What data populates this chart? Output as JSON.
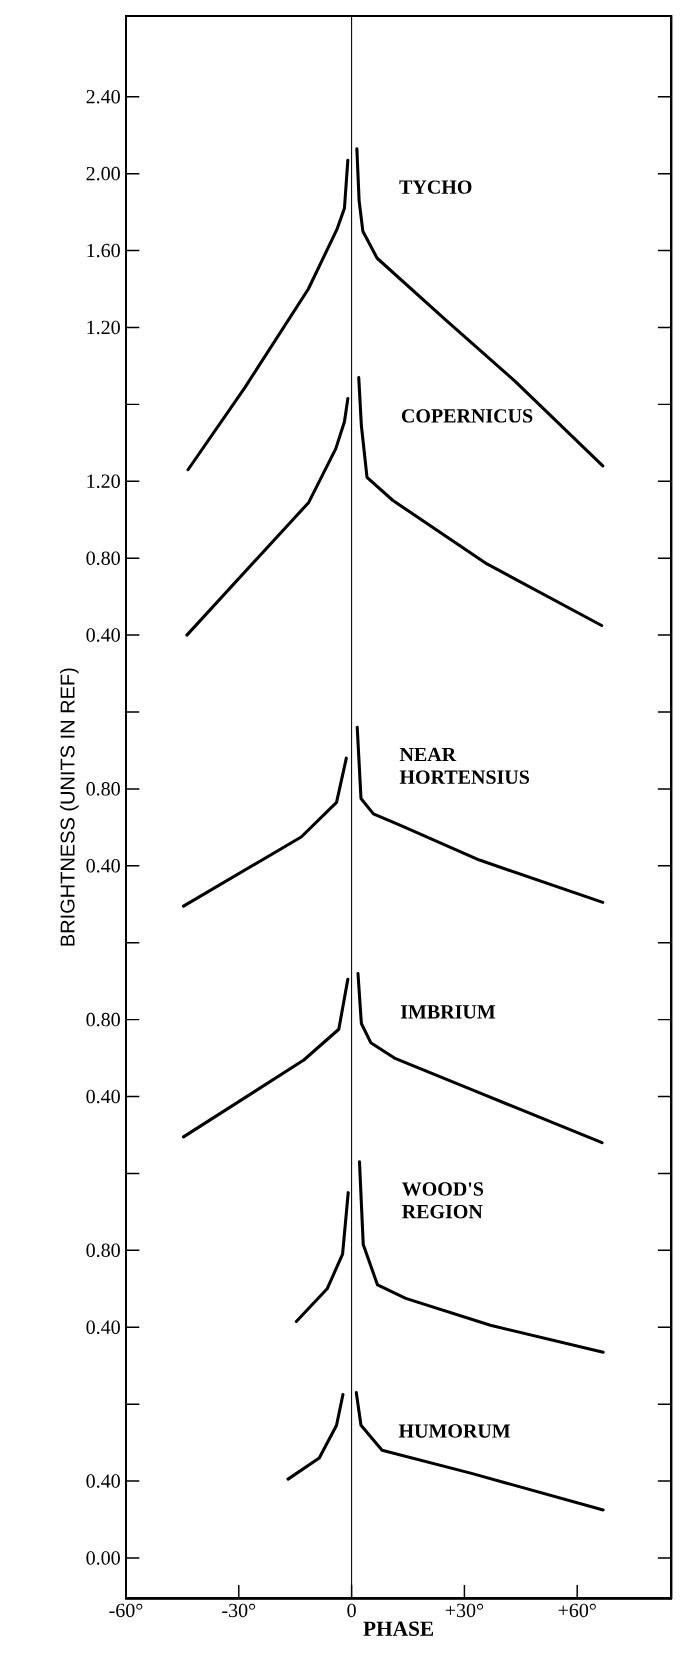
{
  "chart_data": [
    {
      "type": "line",
      "xlim": [
        -60,
        85
      ],
      "ylim": [
        -5.41,
        2.82
      ],
      "tick_labels": "y",
      "yticks": [
        {
          "value": 0.8,
          "label": null
        },
        {
          "value": 1.2,
          "label": "1.20"
        },
        {
          "value": 1.6,
          "label": "1.60"
        },
        {
          "value": 2.0,
          "label": "2.00"
        },
        {
          "value": 2.4,
          "label": "2.40"
        }
      ],
      "series": [
        {
          "name": "TYCHO",
          "color": "#000000",
          "x": [
            -43.5,
            -28.3,
            -11.5,
            -3.9,
            -1.9,
            -1.0,
            0,
            1.4,
            2.0,
            3.0,
            6.8,
            25,
            43.5,
            66.8
          ],
          "values": [
            0.46,
            0.89,
            1.4,
            1.71,
            1.82,
            2.07,
            null,
            2.13,
            1.86,
            1.7,
            1.56,
            1.24,
            0.92,
            0.48
          ]
        }
      ]
    },
    {
      "type": "line",
      "xlim": [
        -60,
        85
      ],
      "ylim": [
        -4.61,
        3.62
      ],
      "tick_labels": "y",
      "yticks": [
        {
          "value": 0.0,
          "label": null
        },
        {
          "value": 0.4,
          "label": "0.40"
        },
        {
          "value": 0.8,
          "label": "0.80"
        },
        {
          "value": 1.2,
          "label": "1.20"
        }
      ],
      "series": [
        {
          "name": "COPERNICUS",
          "color": "#000000",
          "x": [
            -43.8,
            -11.4,
            -4.2,
            -1.9,
            -1.0,
            0,
            1.9,
            2.6,
            4.1,
            11,
            36,
            66.5
          ],
          "values": [
            0.4,
            1.09,
            1.37,
            1.51,
            1.63,
            null,
            1.74,
            1.49,
            1.22,
            1.1,
            0.77,
            0.45
          ]
        }
      ]
    },
    {
      "type": "line",
      "xlim": [
        -60,
        85
      ],
      "ylim": [
        -3.41,
        4.82
      ],
      "tick_labels": "y",
      "yticks": [
        {
          "value": 0.0,
          "label": null
        },
        {
          "value": 0.4,
          "label": "0.40"
        },
        {
          "value": 0.8,
          "label": "0.80"
        }
      ],
      "series": [
        {
          "name": "NEAR HORTENSIUS",
          "color": "#000000",
          "x": [
            -44.7,
            -13.4,
            -4.0,
            -1.4,
            0,
            1.5,
            2.5,
            5.8,
            13,
            34,
            66.8
          ],
          "values": [
            0.19,
            0.55,
            0.73,
            0.96,
            null,
            1.12,
            0.75,
            0.67,
            0.61,
            0.43,
            0.21
          ]
        }
      ]
    },
    {
      "type": "line",
      "xlim": [
        -60,
        85
      ],
      "ylim": [
        -2.21,
        6.02
      ],
      "tick_labels": "y",
      "yticks": [
        {
          "value": 0.0,
          "label": null
        },
        {
          "value": 0.4,
          "label": "0.40"
        },
        {
          "value": 0.8,
          "label": "0.80"
        }
      ],
      "series": [
        {
          "name": "IMBRIUM",
          "color": "#000000",
          "x": [
            -44.7,
            -12.7,
            -3.4,
            -1.0,
            0,
            1.7,
            2.6,
            5.1,
            11.4,
            33.9,
            66.6
          ],
          "values": [
            0.19,
            0.59,
            0.75,
            1.01,
            null,
            1.04,
            0.78,
            0.68,
            0.6,
            0.42,
            0.16
          ]
        }
      ]
    },
    {
      "type": "line",
      "xlim": [
        -60,
        85
      ],
      "ylim": [
        -1.01,
        7.22
      ],
      "tick_labels": "y",
      "yticks": [
        {
          "value": 0.0,
          "label": null
        },
        {
          "value": 0.4,
          "label": "0.40"
        },
        {
          "value": 0.8,
          "label": "0.80"
        }
      ],
      "series": [
        {
          "name": "WOOD'S REGION",
          "color": "#000000",
          "x": [
            -14.7,
            -6.5,
            -2.4,
            -0.9,
            0,
            2.1,
            3.1,
            6.9,
            14.4,
            36.9,
            66.9
          ],
          "values": [
            0.43,
            0.6,
            0.78,
            1.1,
            null,
            1.26,
            0.83,
            0.62,
            0.55,
            0.41,
            0.27
          ]
        }
      ]
    },
    {
      "type": "line",
      "xlim": [
        -60,
        85
      ],
      "ylim": [
        -0.21,
        8.02
      ],
      "xlabel": "PHASE",
      "ylabel": "BRIGHTNESS (UNITS IN REF)",
      "xticks": [
        {
          "value": -60,
          "label": "-60°"
        },
        {
          "value": -30,
          "label": "-30°"
        },
        {
          "value": 0,
          "label": "0"
        },
        {
          "value": 30,
          "label": "+30°"
        },
        {
          "value": 60,
          "label": "+60°"
        }
      ],
      "yticks": [
        {
          "value": 0.0,
          "label": "0.00"
        },
        {
          "value": 0.4,
          "label": "0.40"
        }
      ],
      "ref_lines": [
        {
          "axis": "x",
          "value": 0,
          "color": "#000000"
        }
      ],
      "series": [
        {
          "name": "HUMORUM",
          "color": "#000000",
          "x": [
            -16.9,
            -8.6,
            -4.0,
            -2.3,
            0,
            1.25,
            2.5,
            8.1,
            31.9,
            66.9
          ],
          "values": [
            0.41,
            0.52,
            0.69,
            0.85,
            null,
            0.86,
            0.69,
            0.56,
            0.44,
            0.25
          ]
        }
      ]
    }
  ]
}
